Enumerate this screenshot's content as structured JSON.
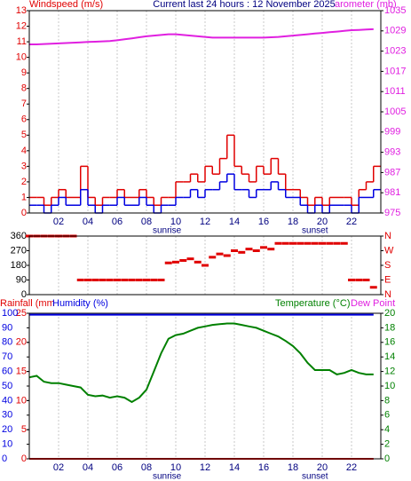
{
  "chart_data": [
    {
      "type": "line",
      "title": "Current last 24 hours : 12 November 2025",
      "y_label": "Windspeed (m/s)",
      "y_color": "#e00000",
      "y2_label": "arometer (mb)",
      "y2_color": "#e020e0",
      "grid": "x",
      "xlim": [
        0,
        24
      ],
      "xticks": [
        {
          "value": 2,
          "label": "02"
        },
        {
          "value": 4,
          "label": "04"
        },
        {
          "value": 6,
          "label": "06"
        },
        {
          "value": 8,
          "label": "08"
        },
        10,
        12,
        14,
        16,
        18,
        20,
        22
      ],
      "ylim": [
        0,
        13
      ],
      "yticks": [
        0,
        1,
        2,
        3,
        4,
        5,
        6,
        7,
        8,
        9,
        10,
        11,
        12,
        13
      ],
      "y2lim": [
        975,
        1035
      ],
      "y2ticks": [
        975,
        981,
        987,
        993,
        999,
        1005,
        1011,
        1017,
        1023,
        1029,
        1035
      ],
      "annotations": [
        {
          "text": "sunrise",
          "x": 9.4
        },
        {
          "text": "sunset",
          "x": 19.5
        }
      ],
      "x": [
        0,
        0.5,
        1,
        1.5,
        2,
        2.5,
        3,
        3.5,
        4,
        4.5,
        5,
        5.5,
        6,
        6.5,
        7,
        7.5,
        8,
        8.5,
        9,
        9.5,
        10,
        10.5,
        11,
        11.5,
        12,
        12.5,
        13,
        13.5,
        14,
        14.5,
        15,
        15.5,
        16,
        16.5,
        17,
        17.5,
        18,
        18.5,
        19,
        19.5,
        20,
        20.5,
        21,
        21.5,
        22,
        22.5,
        23,
        23.5
      ],
      "series": [
        {
          "color": "#e00000",
          "step": true,
          "axis": "y",
          "values": [
            1,
            1,
            0.5,
            1,
            1.5,
            1,
            1,
            3,
            1,
            0.5,
            1,
            1,
            1.5,
            1,
            1,
            1.5,
            1,
            0.5,
            1,
            1,
            2,
            2,
            2.5,
            2,
            3,
            2.5,
            3.5,
            5,
            3,
            2.5,
            2,
            3,
            2.5,
            3.5,
            2.5,
            1.5,
            1.5,
            1,
            0.5,
            1,
            0.5,
            1,
            1,
            1,
            0.5,
            1.5,
            2,
            3
          ]
        },
        {
          "color": "#0000e0",
          "step": true,
          "axis": "y",
          "values": [
            0.5,
            0.5,
            0,
            0.5,
            1,
            0.5,
            0.5,
            1.5,
            0.5,
            0,
            0.5,
            0.5,
            1,
            0.5,
            0.5,
            1,
            0.5,
            0,
            0.5,
            0.5,
            1,
            1,
            1.5,
            1,
            1.5,
            1.5,
            2,
            2.5,
            1.5,
            1.5,
            1,
            1.5,
            1.5,
            2,
            1.5,
            1,
            1,
            0.5,
            0,
            0.5,
            0,
            0.5,
            0.5,
            0.5,
            0,
            1,
            1,
            1.5
          ]
        },
        {
          "color": "#e020e0",
          "axis": "y2",
          "values": [
            1025,
            1025,
            1025.1,
            1025.2,
            1025.3,
            1025.4,
            1025.5,
            1025.6,
            1025.7,
            1025.8,
            1025.9,
            1026,
            1026.2,
            1026.5,
            1026.8,
            1027.1,
            1027.4,
            1027.6,
            1027.8,
            1028,
            1028,
            1027.8,
            1027.6,
            1027.4,
            1027.2,
            1027,
            1027,
            1027,
            1027,
            1027,
            1027,
            1027,
            1027,
            1027.1,
            1027.2,
            1027.4,
            1027.6,
            1027.8,
            1028,
            1028.2,
            1028.4,
            1028.6,
            1028.8,
            1029,
            1029.2,
            1029.3,
            1029.4,
            1029.5
          ]
        }
      ]
    },
    {
      "type": "scatter",
      "y_color": "#000000",
      "y2_color": "#e00000",
      "grid": "x",
      "xlim": [
        0,
        24
      ],
      "xticks": [
        {
          "value": 2,
          "label": ""
        },
        {
          "value": 4,
          "label": ""
        },
        {
          "value": 6,
          "label": ""
        },
        {
          "value": 8,
          "label": ""
        },
        {
          "value": 10,
          "label": ""
        },
        {
          "value": 12,
          "label": ""
        },
        {
          "value": 14,
          "label": ""
        },
        {
          "value": 16,
          "label": ""
        },
        {
          "value": 18,
          "label": ""
        },
        {
          "value": 20,
          "label": ""
        },
        {
          "value": 22,
          "label": ""
        }
      ],
      "ylim": [
        0,
        360
      ],
      "yticks": [
        0,
        90,
        180,
        270,
        360
      ],
      "y2lim": [
        0,
        360
      ],
      "y2ticks": [
        {
          "value": 0,
          "label": "N"
        },
        {
          "value": 90,
          "label": "E"
        },
        {
          "value": 180,
          "label": "S"
        },
        {
          "value": 270,
          "label": "W"
        },
        {
          "value": 360,
          "label": "N"
        }
      ],
      "x": [
        0,
        0.5,
        1,
        1.5,
        2,
        2.5,
        3,
        3.5,
        4,
        4.5,
        5,
        5.5,
        6,
        6.5,
        7,
        7.5,
        8,
        8.5,
        9,
        9.5,
        10,
        10.5,
        11,
        11.5,
        12,
        12.5,
        13,
        13.5,
        14,
        14.5,
        15,
        15.5,
        16,
        16.5,
        17,
        17.5,
        18,
        18.5,
        19,
        19.5,
        20,
        20.5,
        21,
        21.5,
        22,
        22.5,
        23,
        23.5
      ],
      "color": "#e00000",
      "values": [
        360,
        360,
        360,
        360,
        360,
        360,
        360,
        90,
        90,
        90,
        90,
        90,
        90,
        90,
        90,
        90,
        90,
        90,
        90,
        195,
        200,
        210,
        220,
        200,
        180,
        230,
        250,
        240,
        270,
        260,
        280,
        270,
        290,
        280,
        315,
        315,
        315,
        315,
        315,
        315,
        315,
        315,
        315,
        315,
        90,
        90,
        90,
        45
      ]
    },
    {
      "type": "line",
      "dew_point_label": "Dew Point",
      "dew_point_color": "#e020e0",
      "y_color": "#e00000",
      "y3_color": "#0000e0",
      "y2_color": "#008000",
      "grid": "x",
      "xlim": [
        0,
        24
      ],
      "xticks": [
        {
          "value": 2,
          "label": "02"
        },
        {
          "value": 4,
          "label": "04"
        },
        {
          "value": 6,
          "label": "06"
        },
        {
          "value": 8,
          "label": "08"
        },
        10,
        12,
        14,
        16,
        18,
        20,
        22
      ],
      "ylim": [
        0,
        25
      ],
      "yticks": [
        0,
        5,
        10,
        15,
        20,
        25
      ],
      "y3lim": [
        0,
        100
      ],
      "y3ticks": [
        0,
        10,
        20,
        30,
        40,
        50,
        60,
        70,
        80,
        90,
        100
      ],
      "y2lim": [
        0,
        20
      ],
      "y2ticks": [
        0,
        2,
        4,
        6,
        8,
        10,
        12,
        14,
        16,
        18,
        20
      ],
      "annotations": [
        {
          "text": "sunrise",
          "x": 9.4
        },
        {
          "text": "sunset",
          "x": 19.5
        }
      ],
      "x": [
        0,
        0.5,
        1,
        1.5,
        2,
        2.5,
        3,
        3.5,
        4,
        4.5,
        5,
        5.5,
        6,
        6.5,
        7,
        7.5,
        8,
        8.5,
        9,
        9.5,
        10,
        10.5,
        11,
        11.5,
        12,
        12.5,
        13,
        13.5,
        14,
        14.5,
        15,
        15.5,
        16,
        16.5,
        17,
        17.5,
        18,
        18.5,
        19,
        19.5,
        20,
        20.5,
        21,
        21.5,
        22,
        22.5,
        23,
        23.5
      ],
      "series": [
        {
          "name": "Rainfall (mm",
          "color": "#e00000",
          "axis": "y",
          "values": [
            0,
            0,
            0,
            0,
            0,
            0,
            0,
            0,
            0,
            0,
            0,
            0,
            0,
            0,
            0,
            0,
            0,
            0,
            0,
            0,
            0,
            0,
            0,
            0,
            0,
            0,
            0,
            0,
            0,
            0,
            0,
            0,
            0,
            0,
            0,
            0,
            0,
            0,
            0,
            0,
            0,
            0,
            0,
            0,
            0,
            0,
            0,
            0
          ]
        },
        {
          "name": "Humidity (%)",
          "color": "#0000e0",
          "axis": "y3",
          "values": [
            99,
            99,
            99,
            99,
            99,
            99,
            99,
            99,
            99,
            99,
            99,
            99,
            99,
            99,
            99,
            99,
            99,
            99,
            99,
            99,
            99,
            99,
            99,
            99,
            99,
            99,
            99,
            99,
            99,
            99,
            99,
            99,
            99,
            99,
            99,
            99,
            99,
            99,
            99,
            99,
            99,
            99,
            99,
            99,
            99,
            99,
            99,
            99
          ]
        },
        {
          "name": "Temperature (°C)",
          "color": "#008000",
          "axis": "y2",
          "values": [
            11.2,
            11.4,
            10.6,
            10.4,
            10.4,
            10.2,
            10,
            9.8,
            8.8,
            8.6,
            8.7,
            8.4,
            8.6,
            8.4,
            7.8,
            8.4,
            9.5,
            12,
            14.5,
            16.5,
            17,
            17.2,
            17.6,
            18,
            18.2,
            18.4,
            18.5,
            18.6,
            18.6,
            18.4,
            18.2,
            18,
            17.6,
            17.2,
            16.8,
            16.2,
            15.5,
            14.5,
            13.2,
            12.2,
            12.2,
            12.2,
            11.6,
            11.8,
            12.2,
            11.8,
            11.6,
            11.6
          ]
        }
      ]
    }
  ]
}
